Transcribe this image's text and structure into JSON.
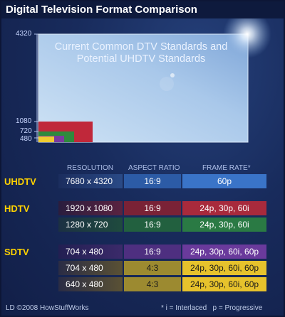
{
  "title": "Digital Television Format Comparison",
  "diagram": {
    "caption_line1": "Current Common DTV Standards and",
    "caption_line2": "Potential UHDTV Standards",
    "y_labels": [
      "4320",
      "1080",
      "720",
      "480"
    ],
    "colors": {
      "uhdtv": "#b9d4ee",
      "hd1080": "#c0283a",
      "hd720": "#2e8a3d",
      "sd_wide": "#7a3aa0",
      "sd43": "#f0cc30"
    }
  },
  "table": {
    "headers": {
      "resolution": "RESOLUTION",
      "aspect": "ASPECT RATIO",
      "frame_rate": "FRAME RATE*"
    },
    "categories": {
      "uhdtv": "UHDTV",
      "hdtv": "HDTV",
      "sdtv": "SDTV"
    },
    "rows": [
      {
        "resolution": "7680 x 4320",
        "aspect": "16:9",
        "frame_rate": "60p"
      },
      {
        "resolution": "1920 x 1080",
        "aspect": "16:9",
        "frame_rate": "24p, 30p, 60i"
      },
      {
        "resolution": "1280 x 720",
        "aspect": "16:9",
        "frame_rate": "24p, 30p, 60i"
      },
      {
        "resolution": "704 x 480",
        "aspect": "16:9",
        "frame_rate": "24p, 30p, 60i, 60p"
      },
      {
        "resolution": "704 x 480",
        "aspect": "4:3",
        "frame_rate": "24p, 30p, 60i, 60p"
      },
      {
        "resolution": "640 x 480",
        "aspect": "4:3",
        "frame_rate": "24p, 30p, 60i, 60p"
      }
    ]
  },
  "footer": {
    "credit": "LD ©2008 HowStuffWorks",
    "note": "* i = Interlaced   p = Progressive"
  }
}
